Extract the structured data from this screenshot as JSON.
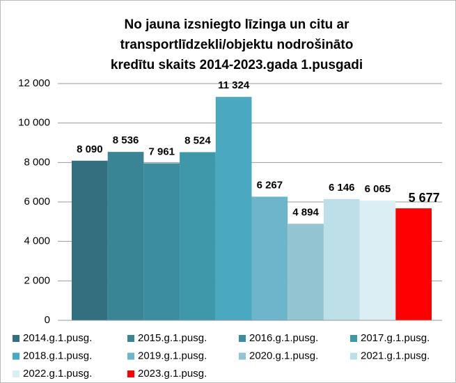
{
  "chart_data": {
    "type": "bar",
    "title": [
      "No jauna izsniegto līzinga un citu ar",
      "transportlīdzekli/objektu nodrošināto",
      "kredītu skaits 2014-2023.gada 1.pusgadi"
    ],
    "series": [
      {
        "name": "2014.g.1.pusg.",
        "color": "#336f7e",
        "values": [
          8090
        ],
        "value_labels": [
          "8 090"
        ]
      },
      {
        "name": "2015.g.1.pusg.",
        "color": "#398595",
        "values": [
          8536
        ],
        "value_labels": [
          "8 536"
        ]
      },
      {
        "name": "2016.g.1.pusg.",
        "color": "#3c8e9f",
        "values": [
          7961
        ],
        "value_labels": [
          "7 961"
        ]
      },
      {
        "name": "2017.g.1.pusg.",
        "color": "#3f97aa",
        "values": [
          8524
        ],
        "value_labels": [
          "8 524"
        ]
      },
      {
        "name": "2018.g.1.pusg.",
        "color": "#4aa8c0",
        "values": [
          11324
        ],
        "value_labels": [
          "11 324"
        ]
      },
      {
        "name": "2019.g.1.pusg.",
        "color": "#6db5ca",
        "values": [
          6267
        ],
        "value_labels": [
          "6 267"
        ]
      },
      {
        "name": "2020.g.1.pusg.",
        "color": "#93c4d2",
        "values": [
          4894
        ],
        "value_labels": [
          "4 894"
        ]
      },
      {
        "name": "2021.g.1.pusg.",
        "color": "#bde0e8",
        "values": [
          6146
        ],
        "value_labels": [
          "6 146"
        ]
      },
      {
        "name": "2022.g.1.pusg.",
        "color": "#daeef3",
        "values": [
          6065
        ],
        "value_labels": [
          "6 065"
        ]
      },
      {
        "name": "2023.g.1.pusg.",
        "color": "#ff0000",
        "values": [
          5677
        ],
        "value_labels": [
          "5 677"
        ]
      }
    ],
    "ylim": [
      0,
      12000
    ],
    "yticks": [
      0,
      {
        "value": 2000,
        "label": "2 000"
      },
      {
        "value": 4000,
        "label": "4 000"
      },
      {
        "value": 6000,
        "label": "6 000"
      },
      {
        "value": 8000,
        "label": "8 000"
      },
      {
        "value": 10000,
        "label": "10 000"
      },
      {
        "value": 12000,
        "label": "12 000"
      }
    ],
    "grid": true,
    "legend": "bottom"
  }
}
